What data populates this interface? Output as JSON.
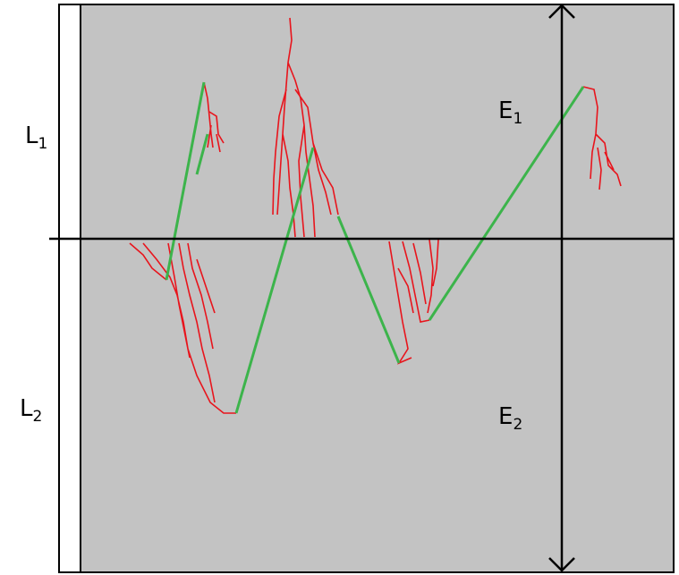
{
  "labels": {
    "L1": {
      "text": "L",
      "sub": "1"
    },
    "L2": {
      "text": "L",
      "sub": "2"
    },
    "E1": {
      "text": "E",
      "sub": "1"
    },
    "E2": {
      "text": "E",
      "sub": "2"
    }
  }
}
